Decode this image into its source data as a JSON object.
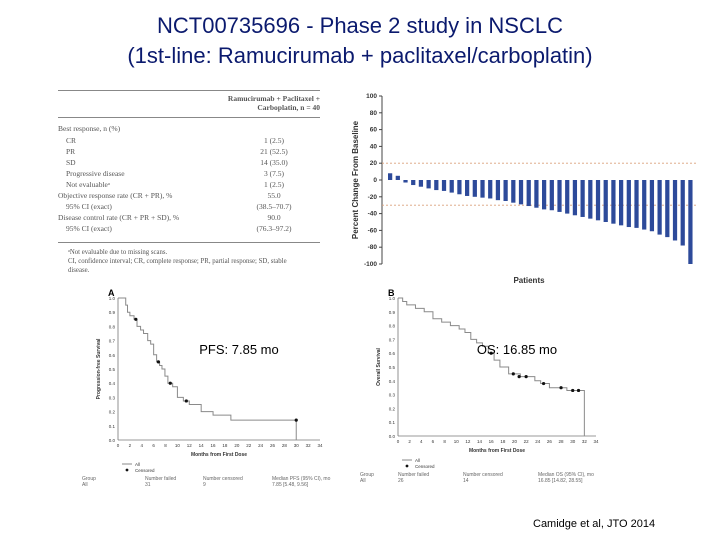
{
  "slide": {
    "title_line1": "NCT00735696 - Phase 2 study in NSCLC",
    "title_line2": "(1st-line: Ramucirumab + paclitaxel/carboplatin)",
    "citation": "Camidge et al, JTO 2014",
    "title_color": "#0b1a6e"
  },
  "table": {
    "header_line1": "Ramucirumab + Paclitaxel +",
    "header_line2": "Carboplatin, n = 40",
    "rows": [
      {
        "label": "Best response, n (%)",
        "value": ""
      },
      {
        "label": "CR",
        "value": "1 (2.5)"
      },
      {
        "label": "PR",
        "value": "21 (52.5)"
      },
      {
        "label": "SD",
        "value": "14 (35.0)"
      },
      {
        "label": "Progressive disease",
        "value": "3 (7.5)"
      },
      {
        "label": "Not evaluableᵃ",
        "value": "1 (2.5)"
      },
      {
        "label": "Objective response rate (CR + PR), %",
        "value": "55.0"
      },
      {
        "label": "95% CI (exact)",
        "value": "(38.5–70.7)"
      },
      {
        "label": "Disease control rate (CR + PR + SD), %",
        "value": "90.0"
      },
      {
        "label": "95% CI (exact)",
        "value": "(76.3–97.2)"
      }
    ],
    "footnote_line1": "ᵃNot evaluable due to missing scans.",
    "footnote_line2": "CI, confidence interval; CR, complete response; PR, partial response; SD, stable",
    "footnote_line3": "disease."
  },
  "chart_data": [
    {
      "type": "bar",
      "ylabel": "Percent Change From Baseline",
      "xlabel": "Patients",
      "ylim": [
        -100,
        100
      ],
      "yticks": [
        100,
        80,
        60,
        40,
        20,
        0,
        -20,
        -40,
        -60,
        -80,
        -100
      ],
      "reference_lines": [
        20,
        -30
      ],
      "color": "#2d4a9a",
      "values": [
        8,
        5,
        -3,
        -6,
        -8,
        -10,
        -12,
        -13,
        -15,
        -17,
        -19,
        -20,
        -21,
        -22,
        -24,
        -25,
        -27,
        -29,
        -31,
        -33,
        -35,
        -36,
        -38,
        -40,
        -42,
        -44,
        -46,
        -48,
        -50,
        -52,
        -54,
        -56,
        -57,
        -59,
        -61,
        -65,
        -68,
        -72,
        -78,
        -100
      ]
    },
    {
      "type": "line",
      "panel": "A",
      "title": "PFS: 7.85 mo",
      "ylabel": "Progression-free Survival",
      "xlabel": "Months from First Dose",
      "xlim": [
        0,
        34
      ],
      "ylim": [
        0,
        1.0
      ],
      "xticks": [
        0,
        2,
        4,
        6,
        8,
        10,
        12,
        14,
        16,
        18,
        20,
        22,
        24,
        26,
        28,
        30,
        32,
        34
      ],
      "yticks": [
        0.0,
        0.1,
        0.2,
        0.3,
        0.4,
        0.5,
        0.6,
        0.7,
        0.8,
        0.9,
        1.0
      ],
      "x": [
        0,
        1.3,
        1.6,
        2.0,
        2.7,
        3.2,
        3.8,
        4.3,
        5.0,
        5.5,
        6.0,
        6.5,
        7.0,
        7.4,
        7.9,
        8.4,
        9.2,
        10.0,
        11.0,
        12.0,
        14.0,
        16.0,
        19.0,
        30.0
      ],
      "y": [
        1.0,
        0.95,
        0.9,
        0.875,
        0.85,
        0.8,
        0.775,
        0.75,
        0.7,
        0.675,
        0.6,
        0.55,
        0.525,
        0.5,
        0.45,
        0.4,
        0.375,
        0.3,
        0.275,
        0.25,
        0.2,
        0.175,
        0.14,
        0.0
      ],
      "censored": [
        [
          3.0,
          0.85
        ],
        [
          6.8,
          0.55
        ],
        [
          8.8,
          0.4
        ],
        [
          11.5,
          0.275
        ],
        [
          30.0,
          0.14
        ]
      ],
      "legend": [
        "All",
        "Censored"
      ],
      "summary_headers": [
        "Group",
        "Number failed",
        "Number censored",
        "Median PFS (95% CI), mo"
      ],
      "summary_values": [
        "All",
        "31",
        "9",
        "7.85 [5.48, 9.56]"
      ]
    },
    {
      "type": "line",
      "panel": "B",
      "title": "OS: 16.85 mo",
      "ylabel": "Overall Survival",
      "xlabel": "Months from First Dose",
      "xlim": [
        0,
        34
      ],
      "ylim": [
        0,
        1.0
      ],
      "xticks": [
        0,
        2,
        4,
        6,
        8,
        10,
        12,
        14,
        16,
        18,
        20,
        22,
        24,
        26,
        28,
        30,
        32,
        34
      ],
      "yticks": [
        0.0,
        0.1,
        0.2,
        0.3,
        0.4,
        0.5,
        0.6,
        0.7,
        0.8,
        0.9,
        1.0
      ],
      "x": [
        0,
        0.8,
        1.5,
        3.0,
        4.5,
        6.0,
        7.5,
        9.0,
        10.5,
        11.5,
        12.5,
        13.5,
        14.5,
        15.5,
        16.5,
        17.5,
        19.0,
        21.0,
        23.5,
        24.5,
        26.0,
        29.0,
        31.5,
        32.0
      ],
      "y": [
        1.0,
        0.975,
        0.95,
        0.925,
        0.9,
        0.85,
        0.825,
        0.8,
        0.775,
        0.75,
        0.7,
        0.675,
        0.65,
        0.6,
        0.55,
        0.5,
        0.45,
        0.43,
        0.4,
        0.38,
        0.35,
        0.33,
        0.33,
        0.0
      ],
      "censored": [
        [
          16.0,
          0.6
        ],
        [
          19.8,
          0.45
        ],
        [
          20.8,
          0.43
        ],
        [
          22.0,
          0.43
        ],
        [
          25.0,
          0.38
        ],
        [
          28.0,
          0.35
        ],
        [
          30.0,
          0.33
        ],
        [
          31.0,
          0.33
        ]
      ],
      "legend": [
        "All",
        "Censored"
      ],
      "summary_headers": [
        "Group",
        "Number failed",
        "Number censored",
        "Median OS (95% CI), mo"
      ],
      "summary_values": [
        "All",
        "26",
        "14",
        "16.85 [14.82, 28.55]"
      ]
    }
  ]
}
